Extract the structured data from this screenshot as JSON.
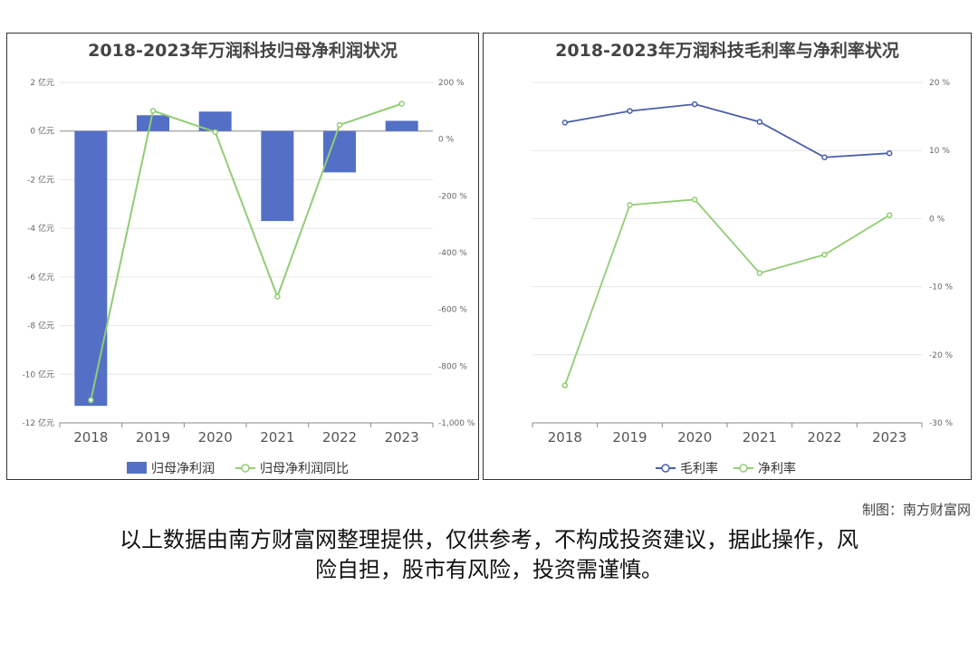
{
  "chart_data": [
    {
      "type": "bar",
      "title": "2018-2023年万润科技归母净利润状况",
      "categories": [
        "2018",
        "2019",
        "2020",
        "2021",
        "2022",
        "2023"
      ],
      "series": [
        {
          "name": "归母净利润",
          "type": "bar",
          "axis": "left",
          "values": [
            -11.3,
            0.65,
            0.8,
            -3.7,
            -1.7,
            0.42
          ]
        },
        {
          "name": "归母净利润同比",
          "type": "line",
          "axis": "right",
          "values": [
            -920,
            100,
            25,
            -555,
            50,
            125
          ]
        }
      ],
      "y_left": {
        "ticks": [
          "2 亿元",
          "0 亿元",
          "-2 亿元",
          "-4 亿元",
          "-6 亿元",
          "-8 亿元",
          "-10 亿元",
          "-12 亿元"
        ],
        "ylim": [
          -12,
          2
        ]
      },
      "y_right": {
        "ticks": [
          "200 %",
          "0 %",
          "-200 %",
          "-400 %",
          "-600 %",
          "-800 %",
          "-1,000 %"
        ],
        "ylim": [
          -1000,
          200
        ]
      },
      "grid": true,
      "legend": "bottom",
      "colors": {
        "bar": "#5470c6",
        "line": "#91cc75"
      }
    },
    {
      "type": "line",
      "title": "2018-2023年万润科技毛利率与净利率状况",
      "categories": [
        "2018",
        "2019",
        "2020",
        "2021",
        "2022",
        "2023"
      ],
      "series": [
        {
          "name": "毛利率",
          "values": [
            14.1,
            15.8,
            16.8,
            14.2,
            9.0,
            9.6
          ]
        },
        {
          "name": "净利率",
          "values": [
            -24.5,
            2.0,
            2.8,
            -8.0,
            -5.3,
            0.5
          ]
        }
      ],
      "y_right": {
        "ticks": [
          "20 %",
          "10 %",
          "0 %",
          "-10 %",
          "-20 %",
          "-30 %"
        ],
        "ylim": [
          -30,
          20
        ]
      },
      "grid": true,
      "legend": "bottom",
      "colors": {
        "毛利率": "#4a5ea8",
        "净利率": "#91cc75"
      }
    }
  ],
  "credit": "制图：南方财富网",
  "disclaimer_line1": "以上数据由南方财富网整理提供，仅供参考，不构成投资建议，据此操作，风",
  "disclaimer_line2": "险自担，股市有风险，投资需谨慎。"
}
